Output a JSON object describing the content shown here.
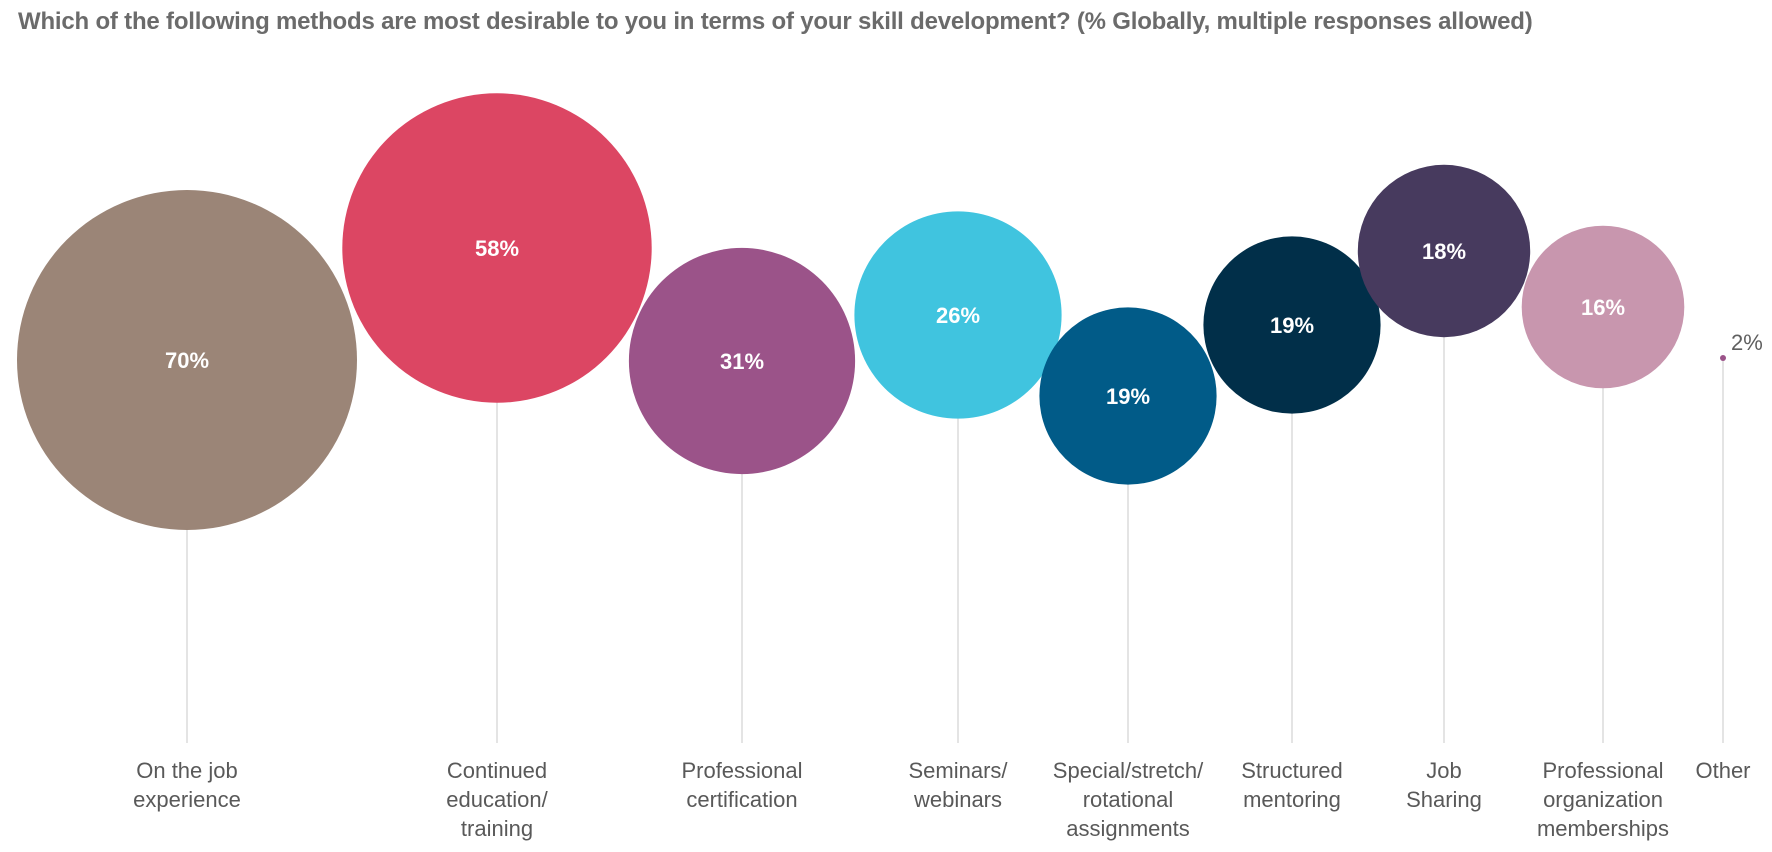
{
  "title": "Which of the following methods are most desirable to you in terms of your skill development? (% Globally, multiple responses allowed)",
  "chart_data": {
    "type": "bubble",
    "title": "Which of the following methods are most desirable to you in terms of your skill development? (% Globally, multiple responses allowed)",
    "unit": "%",
    "categories": [
      "On the job experience",
      "Continued education/ training",
      "Professional certification",
      "Seminars/ webinars",
      "Special/stretch/ rotational assignments",
      "Structured mentoring",
      "Job Sharing",
      "Professional organization memberships",
      "Other"
    ],
    "values": [
      70,
      58,
      31,
      26,
      19,
      19,
      18,
      16,
      2
    ],
    "value_labels": [
      "70%",
      "58%",
      "31%",
      "26%",
      "19%",
      "19%",
      "18%",
      "16%",
      "2%"
    ],
    "category_lines": [
      [
        "On the job",
        "experience"
      ],
      [
        "Continued",
        "education/",
        "training"
      ],
      [
        "Professional",
        "certification"
      ],
      [
        "Seminars/",
        "webinars"
      ],
      [
        "Special/stretch/",
        "rotational",
        "assignments"
      ],
      [
        "Structured",
        "mentoring"
      ],
      [
        "Job",
        "Sharing"
      ],
      [
        "Professional",
        "organization",
        "memberships"
      ],
      [
        "Other"
      ]
    ],
    "colors": [
      "#9b8577",
      "#dc4663",
      "#9b5389",
      "#40c4df",
      "#015b88",
      "#012f49",
      "#473a5e",
      "#c896ae",
      "#9b5389"
    ]
  }
}
